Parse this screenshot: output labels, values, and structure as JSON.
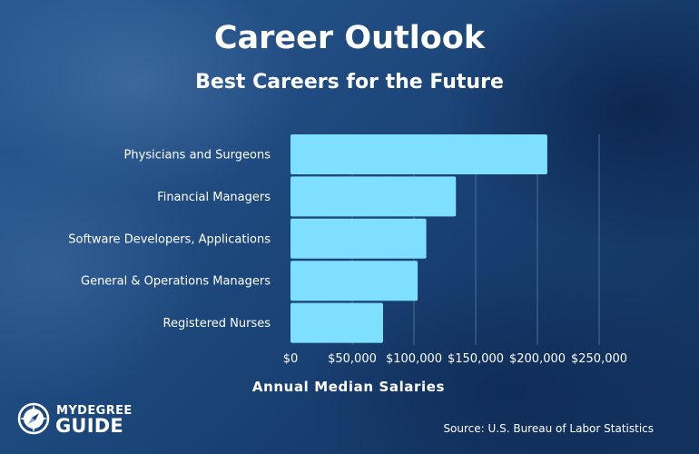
{
  "chart_data": {
    "type": "bar",
    "orientation": "horizontal",
    "title": "Career Outlook",
    "subtitle": "Best Careers for the Future",
    "xlabel": "Annual Median Salaries",
    "ylabel": "",
    "categories": [
      "Physicians and Surgeons",
      "Financial Managers",
      "Software Developers, Applications",
      "General & Operations Managers",
      "Registered Nurses"
    ],
    "values": [
      208000,
      134000,
      110000,
      103000,
      75000
    ],
    "xlim": [
      0,
      250000
    ],
    "x_ticks": [
      0,
      50000,
      100000,
      150000,
      200000,
      250000
    ],
    "x_tick_labels": [
      "$0",
      "$50,000",
      "$100,000",
      "$150,000",
      "$200,000",
      "$250,000"
    ],
    "grid": "vertical",
    "bar_color": "#7fdfff",
    "source": "Source: U.S. Bureau of Labor Statistics"
  },
  "logo": {
    "line1": "MYDEGREE",
    "line2": "GUIDE",
    "icon": "compass-icon"
  },
  "colors": {
    "background": "#1d4474",
    "bar": "#7fdfff",
    "text": "#ffffff",
    "gridline": "#4a6f9c"
  }
}
